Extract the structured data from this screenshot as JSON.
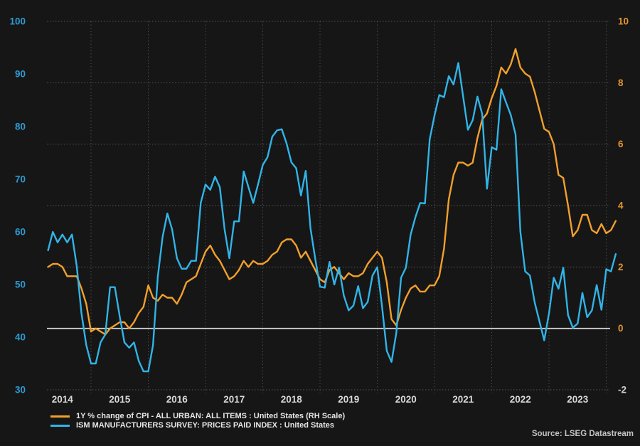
{
  "source": {
    "text": "Source: LSEG Datastream"
  },
  "colors": {
    "background": "#161616",
    "grid_h": "#555555",
    "grid_v": "#4a4a4a",
    "zero_line": "#dcdcdc",
    "left_tick_text": "#2d9ad2",
    "right_tick_text": "#e2952f",
    "right_tick_negative_text": "#cfcfcf",
    "year_text": "#d9d9d9",
    "cpi_orange": "#f2a02c",
    "ism_blue": "#31b4e8"
  },
  "chart_data": {
    "type": "line",
    "title": "",
    "frequency": "monthly",
    "x_start": "2014-04",
    "x_end": "2024-03",
    "x_tick_labels": [
      "2014",
      "2015",
      "2016",
      "2017",
      "2018",
      "2019",
      "2020",
      "2021",
      "2022",
      "2023"
    ],
    "grid": "dashed",
    "legend_position": "bottom-left",
    "left_axis": {
      "min": 30,
      "max": 100,
      "ticks": [
        100,
        90,
        80,
        70,
        60,
        50,
        40,
        30
      ]
    },
    "right_axis": {
      "min": -2,
      "max": 10,
      "ticks": [
        10,
        8,
        6,
        4,
        2,
        0,
        -2
      ]
    },
    "zero_line": {
      "axis": "right",
      "value": 0
    },
    "series": [
      {
        "name": "1Y % change of CPI - ALL URBAN: ALL ITEMS : United States (RH Scale)",
        "axis": "right",
        "color": "#f2a02c",
        "values": [
          2.0,
          2.1,
          2.1,
          2.0,
          1.7,
          1.7,
          1.7,
          1.3,
          0.8,
          -0.1,
          0.0,
          -0.1,
          -0.2,
          0.0,
          0.1,
          0.2,
          0.2,
          0.0,
          0.2,
          0.5,
          0.7,
          1.4,
          1.0,
          0.9,
          1.1,
          1.0,
          1.0,
          0.8,
          1.1,
          1.5,
          1.6,
          1.7,
          2.1,
          2.5,
          2.7,
          2.4,
          2.2,
          1.9,
          1.6,
          1.7,
          1.9,
          2.2,
          2.0,
          2.2,
          2.1,
          2.1,
          2.2,
          2.4,
          2.5,
          2.8,
          2.9,
          2.9,
          2.7,
          2.3,
          2.5,
          2.2,
          1.9,
          1.6,
          1.5,
          1.9,
          2.0,
          1.8,
          1.6,
          1.8,
          1.7,
          1.7,
          1.8,
          2.1,
          2.3,
          2.5,
          2.3,
          1.5,
          0.3,
          0.1,
          0.6,
          1.0,
          1.3,
          1.4,
          1.2,
          1.2,
          1.4,
          1.4,
          1.7,
          2.6,
          4.2,
          5.0,
          5.4,
          5.4,
          5.3,
          5.4,
          6.2,
          6.8,
          7.0,
          7.5,
          7.9,
          8.5,
          8.3,
          8.6,
          9.1,
          8.5,
          8.3,
          8.2,
          7.7,
          7.1,
          6.5,
          6.4,
          6.0,
          5.0,
          4.9,
          4.0,
          3.0,
          3.2,
          3.7,
          3.7,
          3.2,
          3.1,
          3.4,
          3.1,
          3.2,
          3.5
        ]
      },
      {
        "name": "ISM MANUFACTURERS SURVEY: PRICES PAID INDEX : United States",
        "axis": "left",
        "color": "#31b4e8",
        "values": [
          56.5,
          60.0,
          58.0,
          59.5,
          58.0,
          59.5,
          53.5,
          44.5,
          38.5,
          35.0,
          35.0,
          39.0,
          40.5,
          49.5,
          49.5,
          44.0,
          39.0,
          38.0,
          39.0,
          35.5,
          33.5,
          33.5,
          38.5,
          51.5,
          59.0,
          63.5,
          60.5,
          55.0,
          53.0,
          53.0,
          54.5,
          54.5,
          65.5,
          69.0,
          68.0,
          70.5,
          68.5,
          60.5,
          55.0,
          62.0,
          62.0,
          71.5,
          68.5,
          65.5,
          69.0,
          72.7,
          74.2,
          78.1,
          79.3,
          79.5,
          76.8,
          73.2,
          72.1,
          66.9,
          71.6,
          60.7,
          54.9,
          49.6,
          49.4,
          54.3,
          50.0,
          53.2,
          47.9,
          45.1,
          46.0,
          49.7,
          45.5,
          46.7,
          51.7,
          53.3,
          45.9,
          37.4,
          35.3,
          40.8,
          51.3,
          53.2,
          59.5,
          62.8,
          65.5,
          65.4,
          77.6,
          82.1,
          86.0,
          85.6,
          89.6,
          88.0,
          92.1,
          85.7,
          79.4,
          81.2,
          85.7,
          82.4,
          68.2,
          76.1,
          75.6,
          87.1,
          84.6,
          82.2,
          78.5,
          60.0,
          52.5,
          51.7,
          46.6,
          43.0,
          39.4,
          44.5,
          51.3,
          49.2,
          53.2,
          44.2,
          41.8,
          42.6,
          48.4,
          43.8,
          45.1,
          49.9,
          45.2,
          52.9,
          52.5,
          55.8
        ]
      }
    ]
  }
}
